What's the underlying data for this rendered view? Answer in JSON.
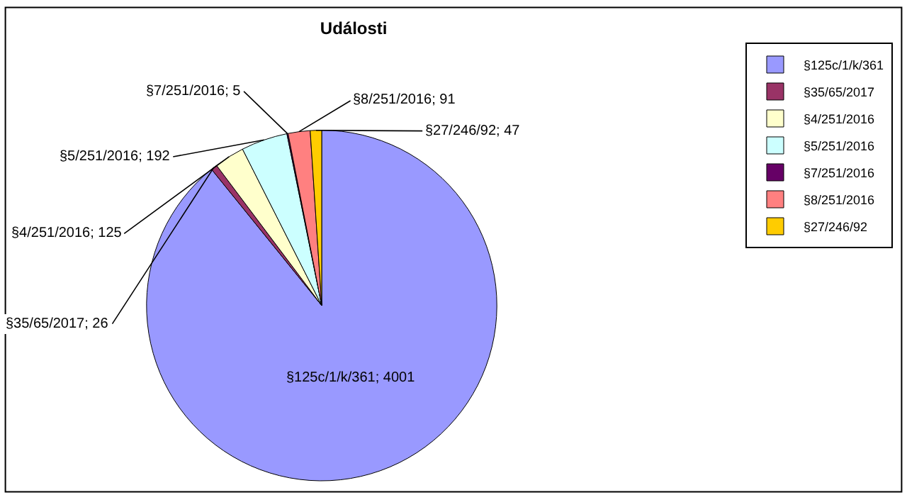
{
  "chart_data": {
    "type": "pie",
    "title": "Události",
    "categories": [
      "§125c/1/k/361",
      "§35/65/2017",
      "§4/251/2016",
      "§5/251/2016",
      "§7/251/2016",
      "§8/251/2016",
      "§27/246/92"
    ],
    "values": [
      4001,
      26,
      125,
      192,
      5,
      91,
      47
    ],
    "colors": [
      "#9999ff",
      "#993366",
      "#ffffcc",
      "#ccffff",
      "#660066",
      "#ff8080",
      "#ffcc00"
    ],
    "value_labels": [
      "§125c/1/k/361; 4001",
      "§35/65/2017; 26",
      "§4/251/2016; 125",
      "§5/251/2016; 192",
      "§7/251/2016; 5",
      "§8/251/2016; 91",
      "§27/246/92; 47"
    ],
    "legend": "top right"
  }
}
